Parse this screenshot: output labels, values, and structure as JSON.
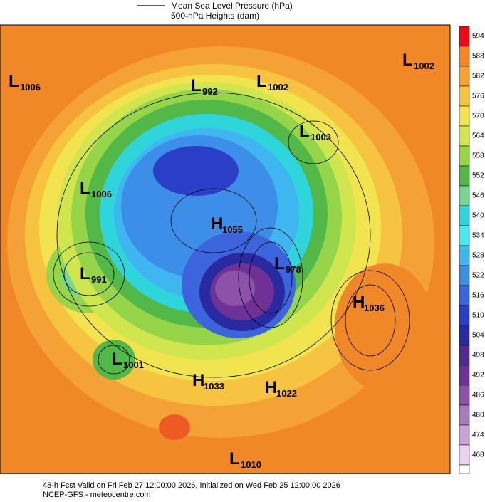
{
  "legend": {
    "mslp": "Mean Sea Level Pressure (hPa)",
    "heights": "500-hPa Heights (dam)"
  },
  "colorbar": [
    {
      "value": 594,
      "color": "#ee0a14"
    },
    {
      "value": 588,
      "color": "#f08828"
    },
    {
      "value": 582,
      "color": "#f4a236"
    },
    {
      "value": 576,
      "color": "#f6c440"
    },
    {
      "value": 570,
      "color": "#f2e44e"
    },
    {
      "value": 564,
      "color": "#cfe64e"
    },
    {
      "value": 558,
      "color": "#96d44a"
    },
    {
      "value": 552,
      "color": "#52b848"
    },
    {
      "value": 546,
      "color": "#76d890"
    },
    {
      "value": 540,
      "color": "#2ed6dc"
    },
    {
      "value": 534,
      "color": "#4ae8f2"
    },
    {
      "value": 528,
      "color": "#40b6f0"
    },
    {
      "value": 522,
      "color": "#3c8ee8"
    },
    {
      "value": 516,
      "color": "#3c64dc"
    },
    {
      "value": 510,
      "color": "#2a3ec8"
    },
    {
      "value": 504,
      "color": "#2a2aa0"
    },
    {
      "value": 498,
      "color": "#502a8c"
    },
    {
      "value": 492,
      "color": "#6e3296"
    },
    {
      "value": 486,
      "color": "#8c52aa"
    },
    {
      "value": 480,
      "color": "#a87abe"
    },
    {
      "value": 474,
      "color": "#caa2d8"
    },
    {
      "value": 468,
      "color": "#e8d4ee"
    }
  ],
  "centers": [
    {
      "letter": "L",
      "pressure": "1006"
    },
    {
      "letter": "L",
      "pressure": "992"
    },
    {
      "letter": "L",
      "pressure": "1002"
    },
    {
      "letter": "L",
      "pressure": "1002"
    },
    {
      "letter": "L",
      "pressure": "1003"
    },
    {
      "letter": "L",
      "pressure": "1006"
    },
    {
      "letter": "H",
      "pressure": "1055"
    },
    {
      "letter": "L",
      "pressure": "978"
    },
    {
      "letter": "L",
      "pressure": "991"
    },
    {
      "letter": "H",
      "pressure": "1036"
    },
    {
      "letter": "L",
      "pressure": "1001"
    },
    {
      "letter": "H",
      "pressure": "1033"
    },
    {
      "letter": "H",
      "pressure": "1022"
    },
    {
      "letter": "L",
      "pressure": "1010"
    }
  ],
  "footer": {
    "line1": "48-h Fcst Valid on Fri Feb 27 12:00:00 2026, Initialized on Wed Feb 25 12:00:00 2026",
    "line2": "NCEP-GFS  - meteocentre.com"
  }
}
